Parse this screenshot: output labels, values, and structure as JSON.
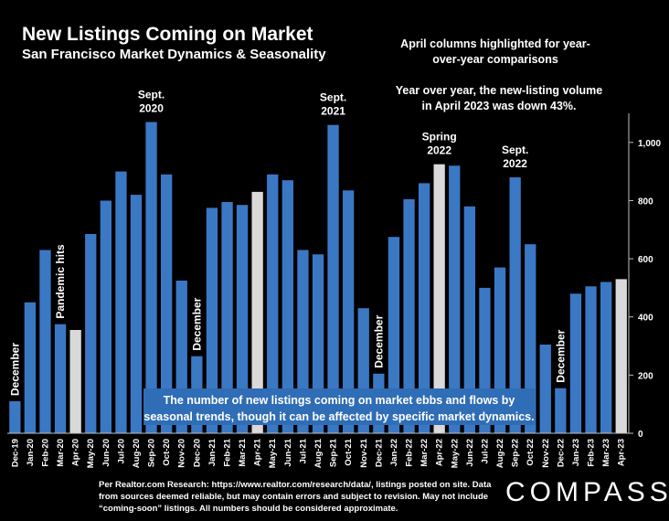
{
  "header": {
    "title": "New Listings Coming on Market",
    "subtitle": "San Francisco Market Dynamics & Seasonality"
  },
  "notes": {
    "april": "April columns highlighted for year-over-year comparisons",
    "yoy": "Year over year, the new-listing volume in April 2023 was down 43%."
  },
  "callout": "The number of new listings coming on market ebbs and flows by seasonal trends, though it can be affected by specific market dynamics.",
  "footnote": "Per Realtor.com Research: https://www.realtor.com/research/data/, listings posted on site. Data from sources deemed reliable, but may contain errors and subject to revision. May not include “coming-soon” listings. All numbers should be considered approximate.",
  "logo": "COMPASS",
  "colors": {
    "bar": "#3b78c4",
    "april_bar": "#d9d9d9",
    "background": "#000000",
    "text": "#ffffff"
  },
  "chart_data": {
    "type": "bar",
    "categories": [
      "Dec-19",
      "Jan-20",
      "Feb-20",
      "Mar-20",
      "Apr-20",
      "May-20",
      "Jun-20",
      "Jul-20",
      "Aug-20",
      "Sep-20",
      "Oct-20",
      "Nov-20",
      "Dec-20",
      "Jan-21",
      "Feb-21",
      "Mar-21",
      "Apr-21",
      "May-21",
      "Jun-21",
      "Jul-21",
      "Aug-21",
      "Sep-21",
      "Oct-21",
      "Nov-21",
      "Dec-21",
      "Jan-22",
      "Feb-22",
      "Mar-22",
      "Apr-22",
      "May-22",
      "Jun-22",
      "Jul-22",
      "Aug-22",
      "Sep-22",
      "Oct-22",
      "Nov-22",
      "Dec-22",
      "Jan-23",
      "Feb-23",
      "Mar-23",
      "Apr-23"
    ],
    "values": [
      110,
      450,
      630,
      375,
      355,
      685,
      800,
      900,
      820,
      1070,
      890,
      525,
      265,
      775,
      795,
      785,
      830,
      890,
      870,
      630,
      615,
      1060,
      835,
      430,
      205,
      675,
      805,
      860,
      925,
      920,
      780,
      500,
      570,
      880,
      650,
      305,
      155,
      480,
      505,
      520,
      530
    ],
    "highlighted": [
      "Apr-20",
      "Apr-21",
      "Apr-22",
      "Apr-23"
    ],
    "ylim": [
      0,
      1100
    ],
    "yticks": [
      0,
      200,
      400,
      600,
      800,
      1000
    ],
    "ytick_labels": [
      "0",
      "200",
      "400",
      "600",
      "800",
      "1,000"
    ],
    "y_axis_side": "right",
    "grid": false,
    "annotations": [
      {
        "category": "Dec-19",
        "text": "December",
        "style": "vertical"
      },
      {
        "category": "Mar-20",
        "text": "Pandemic hits",
        "style": "vertical"
      },
      {
        "category": "Dec-20",
        "text": "December",
        "style": "vertical"
      },
      {
        "category": "Dec-21",
        "text": "December",
        "style": "vertical"
      },
      {
        "category": "Dec-22",
        "text": "December",
        "style": "vertical"
      },
      {
        "category": "Sep-20",
        "lines": [
          "Sept.",
          "2020"
        ],
        "style": "above"
      },
      {
        "category": "Sep-21",
        "lines": [
          "Sept.",
          "2021"
        ],
        "style": "above"
      },
      {
        "category": "Apr-22",
        "lines": [
          "Spring",
          "2022"
        ],
        "style": "above"
      },
      {
        "category": "Sep-22",
        "lines": [
          "Sept.",
          "2022"
        ],
        "style": "above"
      }
    ]
  }
}
